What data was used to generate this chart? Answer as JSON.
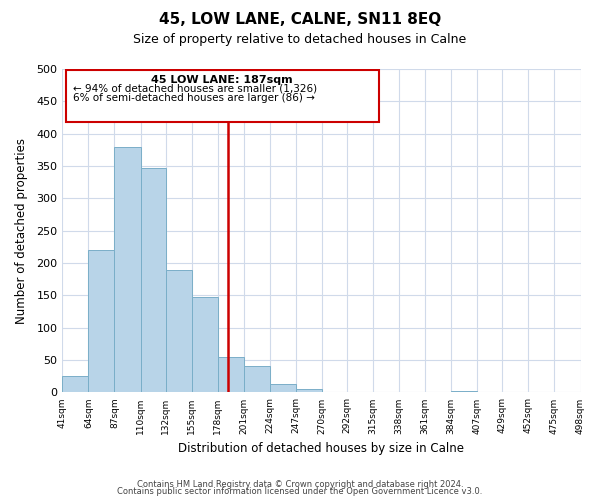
{
  "title": "45, LOW LANE, CALNE, SN11 8EQ",
  "subtitle": "Size of property relative to detached houses in Calne",
  "xlabel": "Distribution of detached houses by size in Calne",
  "ylabel": "Number of detached properties",
  "bar_color": "#b8d4e8",
  "bar_edge_color": "#7aaec8",
  "bin_labels": [
    "41sqm",
    "64sqm",
    "87sqm",
    "110sqm",
    "132sqm",
    "155sqm",
    "178sqm",
    "201sqm",
    "224sqm",
    "247sqm",
    "270sqm",
    "292sqm",
    "315sqm",
    "338sqm",
    "361sqm",
    "384sqm",
    "407sqm",
    "429sqm",
    "452sqm",
    "475sqm",
    "498sqm"
  ],
  "bin_edges": [
    41,
    64,
    87,
    110,
    132,
    155,
    178,
    201,
    224,
    247,
    270,
    292,
    315,
    338,
    361,
    384,
    407,
    429,
    452,
    475,
    498
  ],
  "bar_heights": [
    25,
    220,
    380,
    347,
    190,
    147,
    55,
    41,
    13,
    5,
    0,
    0,
    0,
    0,
    0,
    2,
    0,
    0,
    0,
    0
  ],
  "vline_color": "#cc0000",
  "vline_x": 187,
  "annotation_title": "45 LOW LANE: 187sqm",
  "annotation_line1": "← 94% of detached houses are smaller (1,326)",
  "annotation_line2": "6% of semi-detached houses are larger (86) →",
  "annotation_box_color": "#ffffff",
  "annotation_box_edge": "#cc0000",
  "ylim": [
    0,
    500
  ],
  "yticks": [
    0,
    50,
    100,
    150,
    200,
    250,
    300,
    350,
    400,
    450,
    500
  ],
  "grid_color": "#d0daea",
  "footer1": "Contains HM Land Registry data © Crown copyright and database right 2024.",
  "footer2": "Contains public sector information licensed under the Open Government Licence v3.0."
}
